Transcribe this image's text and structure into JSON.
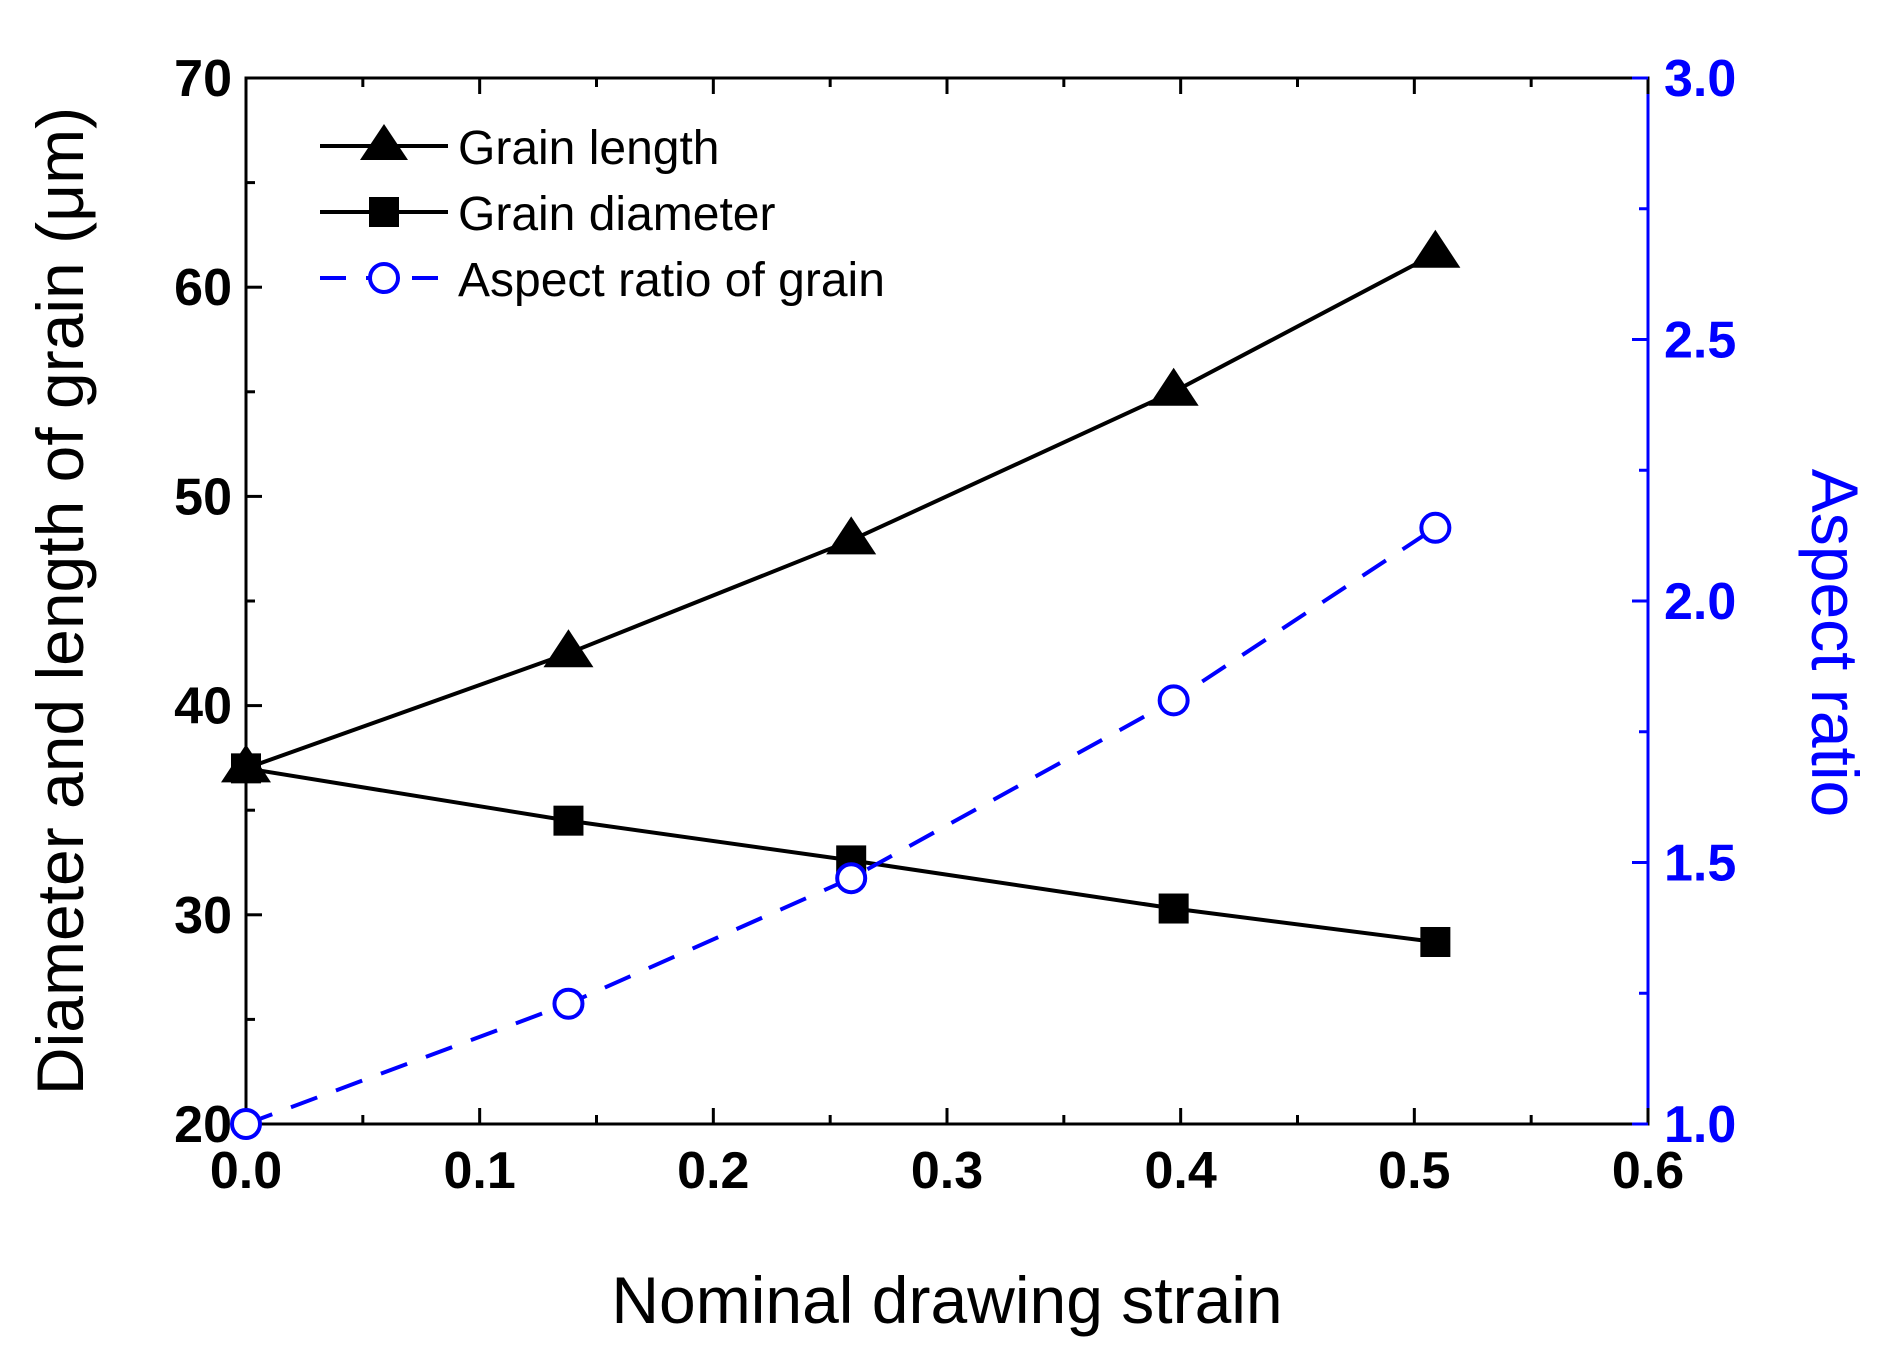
{
  "chart_data": {
    "type": "line",
    "x": [
      0.0,
      0.138,
      0.259,
      0.397,
      0.509
    ],
    "xlabel": "Nominal drawing strain",
    "ylabel": "Diameter and length of grain (μm)",
    "y2label": "Aspect ratio",
    "xlim": [
      0.0,
      0.6
    ],
    "ylim": [
      20,
      70
    ],
    "y2lim": [
      1.0,
      3.0
    ],
    "xticks": [
      "0.0",
      "0.1",
      "0.2",
      "0.3",
      "0.4",
      "0.5",
      "0.6"
    ],
    "yticks": [
      "20",
      "30",
      "40",
      "50",
      "60",
      "70"
    ],
    "y2ticks": [
      "1.0",
      "1.5",
      "2.0",
      "2.5",
      "3.0"
    ],
    "grid": false,
    "legend_position": "top-left",
    "series": [
      {
        "name": "Grain length",
        "axis": "left",
        "marker": "triangle",
        "line": "solid",
        "color": "#000000",
        "values": [
          37.0,
          42.5,
          47.9,
          55.0,
          61.6
        ]
      },
      {
        "name": "Grain diameter",
        "axis": "left",
        "marker": "square",
        "line": "solid",
        "color": "#000000",
        "values": [
          37.0,
          34.5,
          32.6,
          30.3,
          28.7
        ]
      },
      {
        "name": "Aspect ratio of grain",
        "axis": "right",
        "marker": "open-circle",
        "line": "dashed",
        "color": "#0000ff",
        "values": [
          1.0,
          1.23,
          1.47,
          1.81,
          2.14
        ]
      }
    ],
    "axis_color_right": "#0000ff",
    "axis_color_left": "#000000"
  }
}
